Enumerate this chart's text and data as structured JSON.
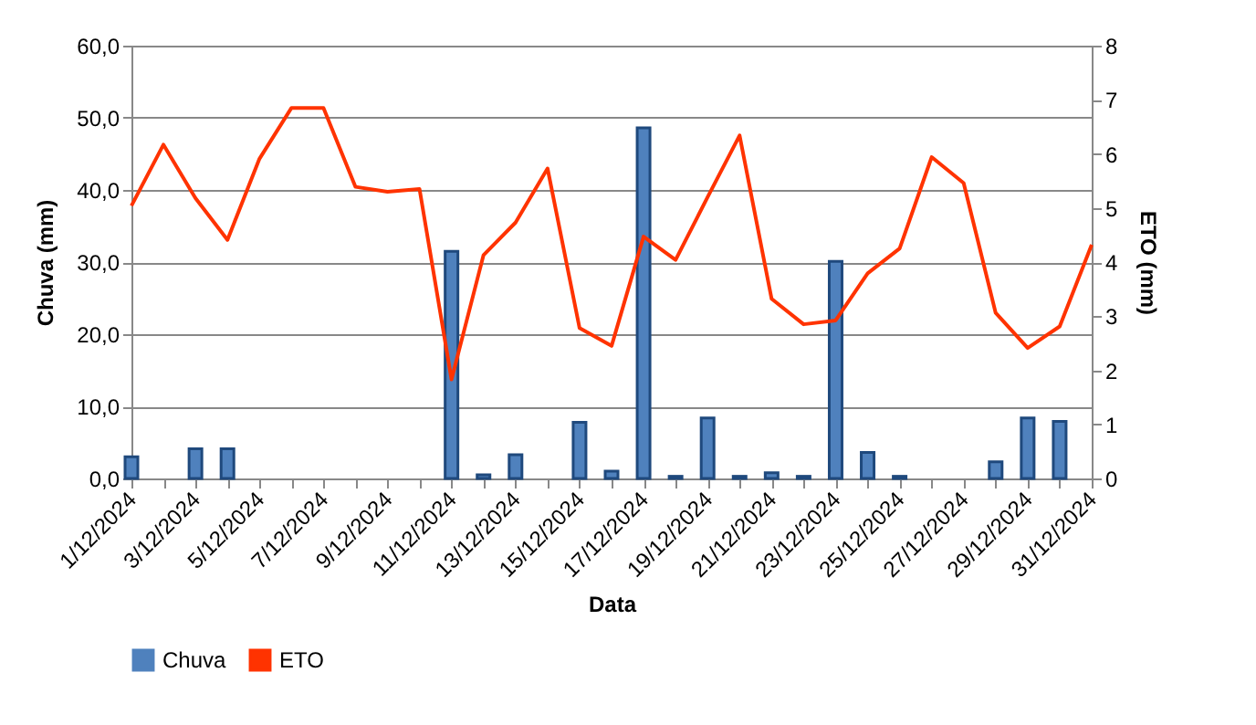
{
  "chart_data": {
    "type": "bar",
    "xlabel": "Data",
    "ylabel": "Chuva (mm)",
    "y2label": "ETO (mm)",
    "categories": [
      "1/12/2024",
      null,
      "3/12/2024",
      null,
      "5/12/2024",
      null,
      "7/12/2024",
      null,
      "9/12/2024",
      null,
      "11/12/2024",
      null,
      "13/12/2024",
      null,
      "15/12/2024",
      null,
      "17/12/2024",
      null,
      "19/12/2024",
      null,
      "21/12/2024",
      null,
      "23/12/2024",
      null,
      "25/12/2024",
      null,
      "27/12/2024",
      null,
      "29/12/2024",
      null,
      "31/12/2024"
    ],
    "series": [
      {
        "name": "Chuva",
        "color": "#4f81bd",
        "values": [
          3.0,
          null,
          4.1,
          4.1,
          null,
          null,
          null,
          null,
          null,
          null,
          31.5,
          0.5,
          3.3,
          null,
          7.8,
          1.0,
          48.6,
          0.3,
          8.4,
          0.3,
          0.8,
          0.3,
          30.1,
          3.6,
          0.3,
          null,
          null,
          2.3,
          8.4,
          7.9,
          null
        ]
      },
      {
        "name": "ETO",
        "type": "line",
        "axis": "y2",
        "color": "#ff3300",
        "values": [
          5.04,
          6.17,
          5.18,
          4.41,
          5.91,
          6.85,
          6.85,
          5.39,
          5.3,
          5.35,
          1.83,
          4.13,
          4.73,
          5.73,
          2.78,
          2.45,
          4.47,
          4.04,
          5.2,
          6.34,
          3.32,
          2.85,
          2.92,
          3.79,
          4.25,
          5.94,
          5.46,
          3.06,
          2.41,
          2.81,
          4.32
        ]
      }
    ],
    "ylim": [
      0,
      60
    ],
    "yticks": [
      {
        "value": 0,
        "label": "0,0"
      },
      {
        "value": 10,
        "label": "10,0"
      },
      {
        "value": 20,
        "label": "20,0"
      },
      {
        "value": 30,
        "label": "30,0"
      },
      {
        "value": 40,
        "label": "40,0"
      },
      {
        "value": 50,
        "label": "50,0"
      },
      {
        "value": 60,
        "label": "60,0"
      }
    ],
    "y2lim": [
      0,
      8
    ],
    "y2ticks": [
      0,
      1,
      2,
      3,
      4,
      5,
      6,
      7,
      8
    ],
    "grid": "y",
    "legend": "bottom"
  }
}
